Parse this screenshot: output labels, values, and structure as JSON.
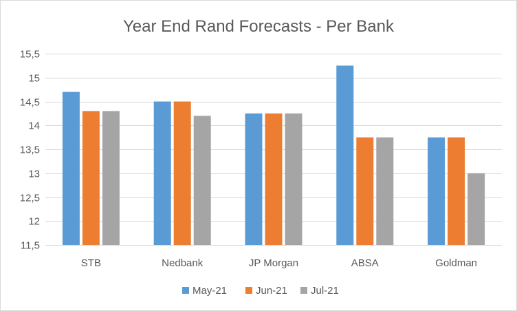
{
  "chart_data": {
    "type": "bar",
    "title": "Year End Rand Forecasts - Per Bank",
    "xlabel": "",
    "ylabel": "",
    "categories": [
      "STB",
      "Nedbank",
      "JP Morgan",
      "ABSA",
      "Goldman"
    ],
    "series": [
      {
        "name": "May-21",
        "color": "#5b9bd5",
        "values": [
          14.7,
          14.5,
          14.25,
          15.25,
          13.75
        ]
      },
      {
        "name": "Jun-21",
        "color": "#ed7d31",
        "values": [
          14.3,
          14.5,
          14.25,
          13.75,
          13.75
        ]
      },
      {
        "name": "Jul-21",
        "color": "#a5a5a5",
        "values": [
          14.3,
          14.2,
          14.25,
          13.75,
          13.0
        ]
      }
    ],
    "ylim": [
      11.5,
      15.5
    ],
    "yticks": [
      11.5,
      12,
      12.5,
      13,
      13.5,
      14,
      14.5,
      15,
      15.5
    ],
    "ytick_labels": [
      "11,5",
      "12",
      "12,5",
      "13",
      "13,5",
      "14",
      "14,5",
      "15",
      "15,5"
    ],
    "grid": true,
    "legend_position": "bottom"
  }
}
